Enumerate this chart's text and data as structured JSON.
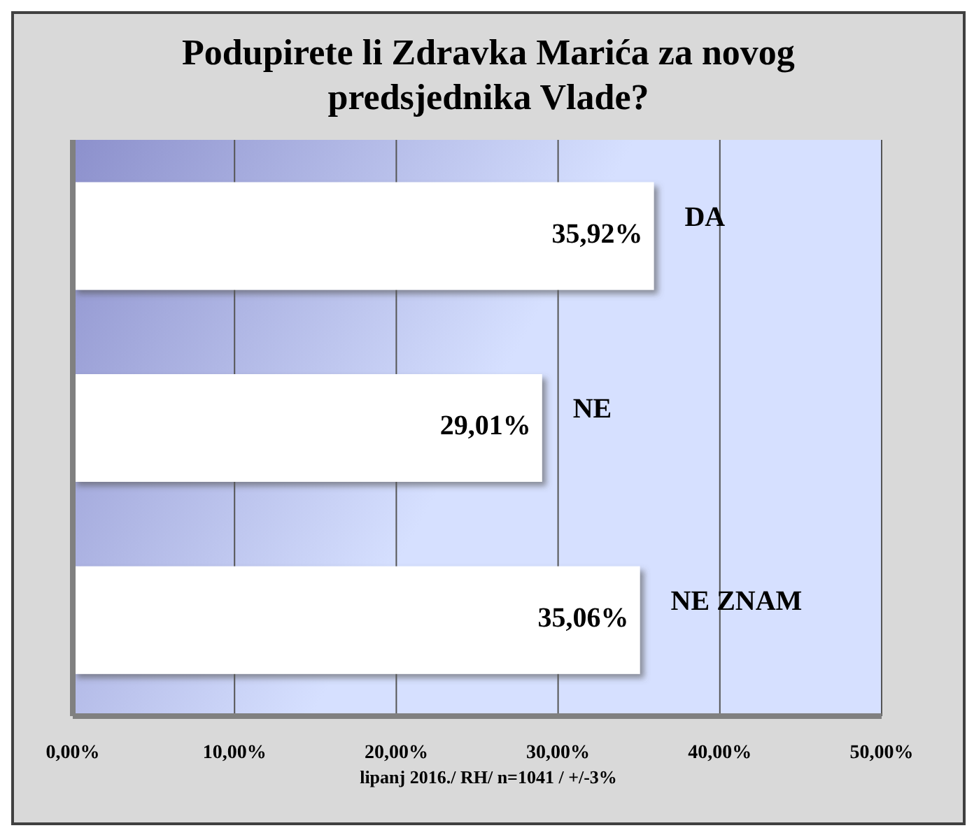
{
  "chart_data": {
    "type": "bar",
    "orientation": "horizontal",
    "title": "Podupirete li Zdravka Marića za novog predsjednika Vlade?",
    "categories": [
      "DA",
      "NE",
      "NE ZNAM"
    ],
    "values": [
      35.92,
      29.01,
      35.06
    ],
    "value_labels": [
      "35,92%",
      "29,01%",
      "35,06%"
    ],
    "color": "#ffffff",
    "xlim": [
      0,
      50
    ],
    "xticks": [
      {
        "value": 0,
        "label": "0,00%"
      },
      {
        "value": 10,
        "label": "10,00%"
      },
      {
        "value": 20,
        "label": "20,00%"
      },
      {
        "value": 30,
        "label": "30,00%"
      },
      {
        "value": 40,
        "label": "40,00%"
      },
      {
        "value": 50,
        "label": "50,00%"
      }
    ],
    "grid": "x",
    "annotations": [
      "lipanj 2016./ RH/ n=1041 / +/-3%"
    ]
  }
}
